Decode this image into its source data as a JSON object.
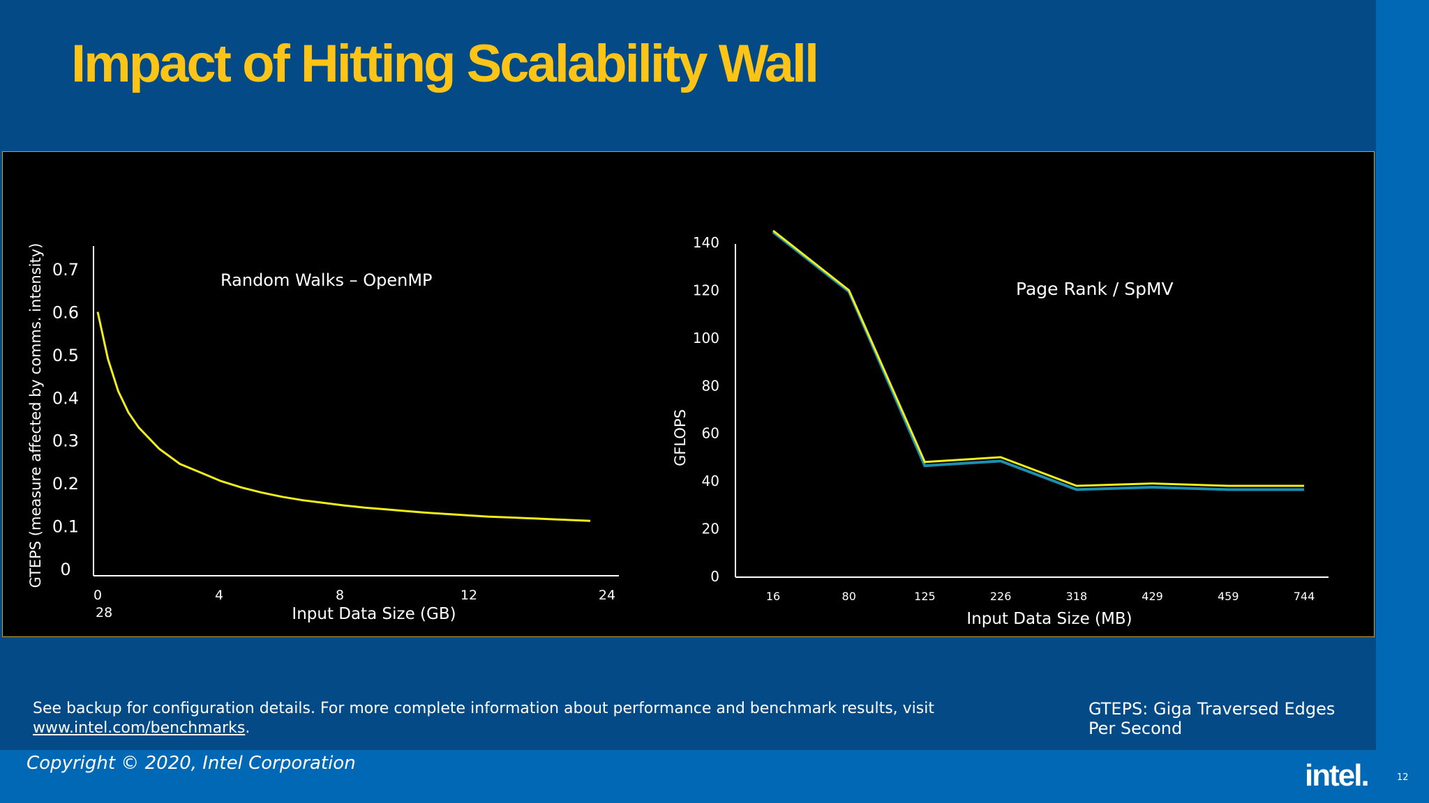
{
  "slide": {
    "title": "Impact of Hitting Scalability Wall",
    "footnote_text": "See backup for configuration details. For more complete information about performance and benchmark results, visit ",
    "footnote_link": "www.intel.com/benchmarks",
    "footnote_end": ".",
    "gteps_definition": "GTEPS: Giga Traversed Edges Per Second",
    "copyright": "Copyright © 2020, Intel Corporation",
    "logo": "intel.",
    "page_number": "12"
  },
  "colors": {
    "background": "#034a86",
    "title": "#fcc417",
    "accent_strip": "#0168b5",
    "chart_background": "#000000",
    "line_yellow": "#f2ee1c",
    "line_teal": "#1c8fb0"
  },
  "chart_data": [
    {
      "type": "line",
      "title": "Random Walks  – OpenMP",
      "xlabel": "Input Data Size (GB)",
      "ylabel": "GTEPS (measure affected by comms. intensity)",
      "xlim": [
        0,
        24
      ],
      "ylim": [
        0,
        0.7
      ],
      "x_ticks": [
        "0",
        "4",
        "8",
        "12",
        "24"
      ],
      "x_tick_extra": "28",
      "y_ticks": [
        "0",
        "0.1",
        "0.2",
        "0.3",
        "0.4",
        "0.5",
        "0.6",
        "0.7"
      ],
      "series": [
        {
          "x": [
            0,
            0.5,
            1,
            1.5,
            2,
            3,
            4,
            5,
            6,
            7,
            8,
            9,
            10,
            11,
            12,
            13,
            14,
            15,
            16,
            17,
            18,
            19,
            20,
            21,
            22,
            23,
            24
          ],
          "y": [
            0.6,
            0.49,
            0.415,
            0.365,
            0.33,
            0.28,
            0.245,
            0.225,
            0.205,
            0.19,
            0.178,
            0.168,
            0.16,
            0.154,
            0.148,
            0.143,
            0.139,
            0.135,
            0.131,
            0.128,
            0.125,
            0.122,
            0.12,
            0.118,
            0.116,
            0.114,
            0.112
          ]
        }
      ],
      "grid": false
    },
    {
      "type": "line",
      "title": "Page Rank / SpMV",
      "xlabel": "Input Data Size (MB)",
      "ylabel": "GFLOPS",
      "categories": [
        "16",
        "80",
        "125",
        "226",
        "318",
        "429",
        "459",
        "744"
      ],
      "ylim": [
        0,
        140
      ],
      "y_ticks": [
        "0",
        "20",
        "40",
        "60",
        "80",
        "100",
        "120",
        "140"
      ],
      "series": [
        {
          "values": [
            145,
            120,
            47,
            49,
            37,
            38,
            37,
            37
          ]
        },
        {
          "values": [
            145,
            120,
            48,
            50,
            38,
            39,
            38,
            38
          ]
        }
      ],
      "grid": false
    }
  ]
}
